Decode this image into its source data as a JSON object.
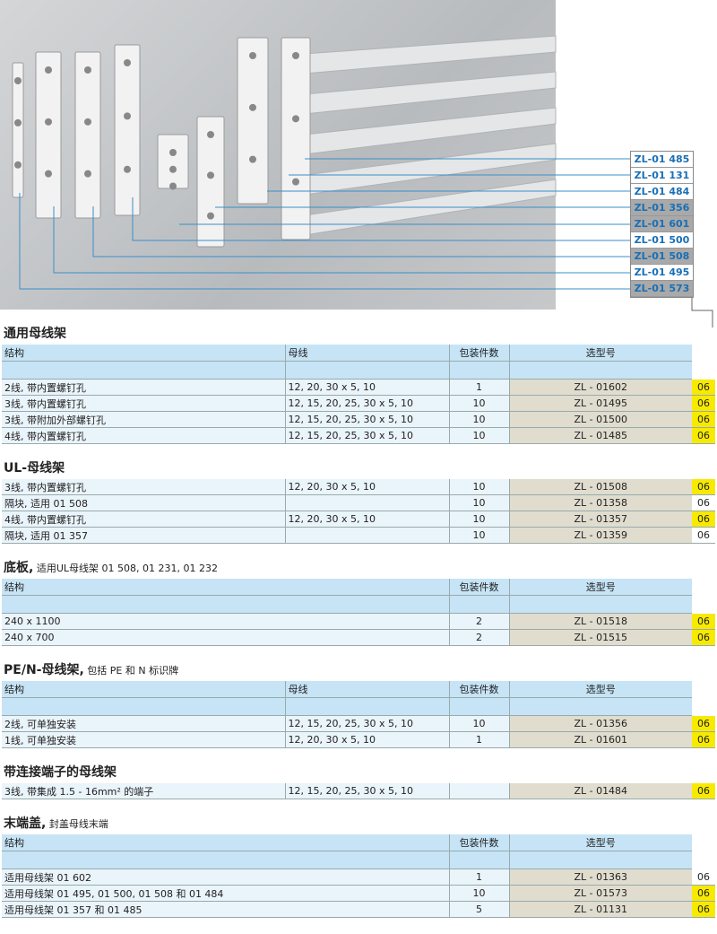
{
  "callout_labels": [
    {
      "text": "ZL-01 485",
      "shaded": false
    },
    {
      "text": "ZL-01 131",
      "shaded": false
    },
    {
      "text": "ZL-01 484",
      "shaded": false
    },
    {
      "text": "ZL-01 356",
      "shaded": true
    },
    {
      "text": "ZL-01 601",
      "shaded": true
    },
    {
      "text": "ZL-01 500",
      "shaded": false
    },
    {
      "text": "ZL-01 508",
      "shaded": true
    },
    {
      "text": "ZL-01 495",
      "shaded": false
    },
    {
      "text": "ZL-01 573",
      "shaded": true
    }
  ],
  "colors": {
    "line": "#3a8fc7",
    "header": "#c6e4f6",
    "row": "#eaf4fb",
    "model": "#e0ddcf",
    "highlight": "#f7ea00"
  },
  "sections": [
    {
      "title": "通用母线架",
      "subtitle": "",
      "header": [
        "结构",
        "母线",
        "包装件数",
        "选型号"
      ],
      "blank": true,
      "rows": [
        [
          "2线, 带内置螺钉孔",
          "12, 20, 30  x  5, 10",
          "1",
          "ZL - 01602",
          "06",
          true
        ],
        [
          "3线, 带内置螺钉孔",
          "12, 15, 20, 25, 30  x  5, 10",
          "10",
          "ZL - 01495",
          "06",
          true
        ],
        [
          "3线, 带附加外部螺钉孔",
          "12, 15, 20, 25, 30  x  5, 10",
          "10",
          "ZL - 01500",
          "06",
          true
        ],
        [
          "4线, 带内置螺钉孔",
          "12, 15, 20, 25, 30  x  5, 10",
          "10",
          "ZL - 01485",
          "06",
          true
        ]
      ]
    },
    {
      "title": "UL-母线架",
      "subtitle": "",
      "header": null,
      "blank": false,
      "rows": [
        [
          "3线, 带内置螺钉孔",
          "12, 20, 30  x  5, 10",
          "10",
          "ZL - 01508",
          "06",
          true
        ],
        [
          "隔块, 适用 01 508",
          "",
          "10",
          "ZL - 01358",
          "06",
          false
        ],
        [
          "4线, 带内置螺钉孔",
          "12, 20, 30  x  5, 10",
          "10",
          "ZL - 01357",
          "06",
          true
        ],
        [
          "隔块, 适用 01 357",
          "",
          "10",
          "ZL - 01359",
          "06",
          false
        ]
      ]
    },
    {
      "title": "底板,",
      "subtitle": " 适用UL母线架 01 508, 01 231, 01 232",
      "header": [
        "结构",
        null,
        "包装件数",
        "选型号"
      ],
      "blank": true,
      "merge": true,
      "rows": [
        [
          "240 x 1100",
          null,
          "2",
          "ZL - 01518",
          "06",
          true
        ],
        [
          "240 x 700",
          null,
          "2",
          "ZL - 01515",
          "06",
          true
        ]
      ]
    },
    {
      "title": "PE/N-母线架,",
      "subtitle": " 包括 PE 和 N 标识牌",
      "header": [
        "结构",
        "母线",
        "包装件数",
        "选型号"
      ],
      "blank": true,
      "rows": [
        [
          "2线, 可单独安装",
          "12, 15, 20, 25, 30  x  5, 10",
          "10",
          "ZL - 01356",
          "06",
          true
        ],
        [
          "1线, 可单独安装",
          "12, 20, 30  x  5, 10",
          "1",
          "ZL - 01601",
          "06",
          true
        ]
      ]
    },
    {
      "title": "带连接端子的母线架",
      "subtitle": "",
      "header": null,
      "blank": false,
      "rows": [
        [
          "3线, 带集成 1.5 - 16mm² 的端子",
          "12, 15, 20, 25, 30  x  5, 10",
          "",
          "ZL - 01484",
          "06",
          true
        ]
      ]
    },
    {
      "title": "末端盖,",
      "subtitle": " 封盖母线末端",
      "header": [
        "结构",
        null,
        "包装件数",
        "选型号"
      ],
      "blank": true,
      "merge": true,
      "rows": [
        [
          "适用母线架 01 602",
          null,
          "1",
          "ZL - 01363",
          "06",
          false
        ],
        [
          "适用母线架 01 495, 01 500, 01 508 和 01 484",
          null,
          "10",
          "ZL - 01573",
          "06",
          true
        ],
        [
          "适用母线架 01 357 和 01 485",
          null,
          "5",
          "ZL - 01131",
          "06",
          true
        ]
      ]
    }
  ]
}
